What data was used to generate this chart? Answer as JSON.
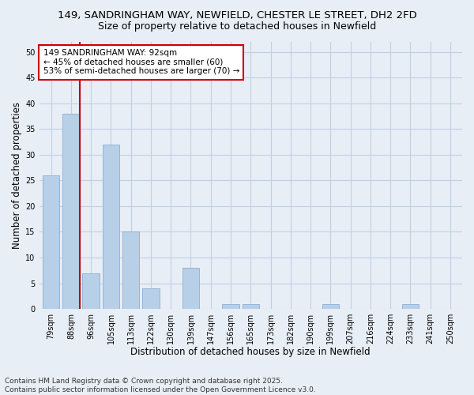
{
  "title_line1": "149, SANDRINGHAM WAY, NEWFIELD, CHESTER LE STREET, DH2 2FD",
  "title_line2": "Size of property relative to detached houses in Newfield",
  "xlabel": "Distribution of detached houses by size in Newfield",
  "ylabel": "Number of detached properties",
  "categories": [
    "79sqm",
    "88sqm",
    "96sqm",
    "105sqm",
    "113sqm",
    "122sqm",
    "130sqm",
    "139sqm",
    "147sqm",
    "156sqm",
    "165sqm",
    "173sqm",
    "182sqm",
    "190sqm",
    "199sqm",
    "207sqm",
    "216sqm",
    "224sqm",
    "233sqm",
    "241sqm",
    "250sqm"
  ],
  "values": [
    26,
    38,
    7,
    32,
    15,
    4,
    0,
    8,
    0,
    1,
    1,
    0,
    0,
    0,
    1,
    0,
    0,
    0,
    1,
    0,
    0
  ],
  "bar_color": "#b8cfe8",
  "bar_edge_color": "#8aafd4",
  "grid_color": "#c0d0e4",
  "background_color": "#e8eef6",
  "vline_x_index": 1.42,
  "vline_color": "#bb0000",
  "annotation_text": "149 SANDRINGHAM WAY: 92sqm\n← 45% of detached houses are smaller (60)\n53% of semi-detached houses are larger (70) →",
  "annotation_box_facecolor": "#ffffff",
  "annotation_box_edgecolor": "#cc0000",
  "ylim": [
    0,
    52
  ],
  "yticks": [
    0,
    5,
    10,
    15,
    20,
    25,
    30,
    35,
    40,
    45,
    50
  ],
  "footer_line1": "Contains HM Land Registry data © Crown copyright and database right 2025.",
  "footer_line2": "Contains public sector information licensed under the Open Government Licence v3.0.",
  "title_fontsize": 9.5,
  "subtitle_fontsize": 9,
  "tick_fontsize": 7,
  "xlabel_fontsize": 8.5,
  "ylabel_fontsize": 8.5,
  "annotation_fontsize": 7.5,
  "footer_fontsize": 6.5
}
